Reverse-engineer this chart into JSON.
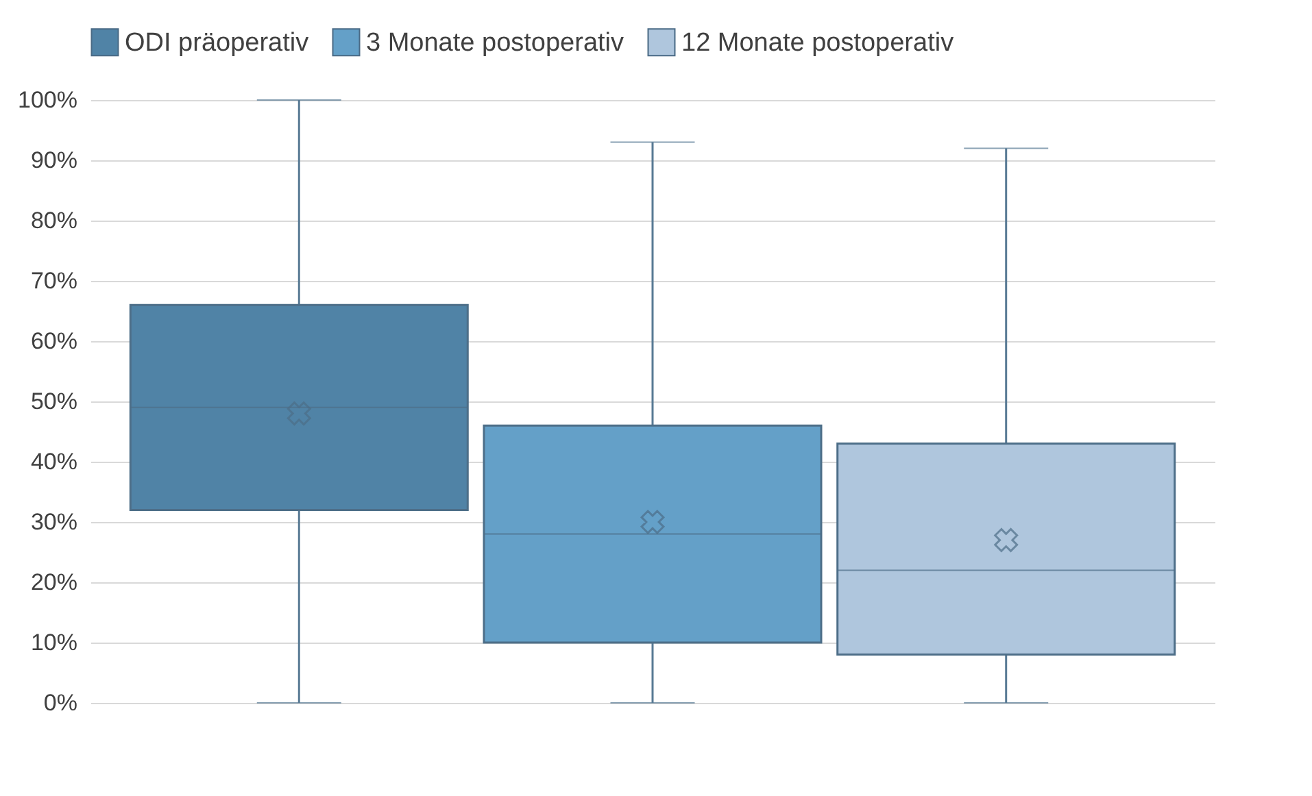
{
  "chart_data": {
    "type": "box",
    "categories": [
      null
    ],
    "series": [
      {
        "name": "ODI präoperativ",
        "color": "#5083a6",
        "boxes": [
          {
            "low": 0,
            "q1": 32,
            "median": 49,
            "q3": 66,
            "high": 100,
            "mean": 48
          }
        ]
      },
      {
        "name": "3 Monate postoperativ",
        "color": "#64a0c8",
        "boxes": [
          {
            "low": 0,
            "q1": 10,
            "median": 28,
            "q3": 46,
            "high": 93,
            "mean": 30
          }
        ]
      },
      {
        "name": "12 Monate postoperativ",
        "color": "#afc6dd",
        "boxes": [
          {
            "low": 0,
            "q1": 8,
            "median": 22,
            "q3": 43,
            "high": 92,
            "mean": 27
          }
        ]
      }
    ],
    "ylim": [
      0,
      100
    ],
    "yticks": [
      {
        "value": 0,
        "label": "0%"
      },
      {
        "value": 10,
        "label": "10%"
      },
      {
        "value": 20,
        "label": "20%"
      },
      {
        "value": 30,
        "label": "30%"
      },
      {
        "value": 40,
        "label": "40%"
      },
      {
        "value": 50,
        "label": "50%"
      },
      {
        "value": 60,
        "label": "60%"
      },
      {
        "value": 70,
        "label": "70%"
      },
      {
        "value": 80,
        "label": "80%"
      },
      {
        "value": 90,
        "label": "90%"
      },
      {
        "value": 100,
        "label": "100%"
      }
    ],
    "grid": "y",
    "legend": "top",
    "tick_labels": "y"
  }
}
